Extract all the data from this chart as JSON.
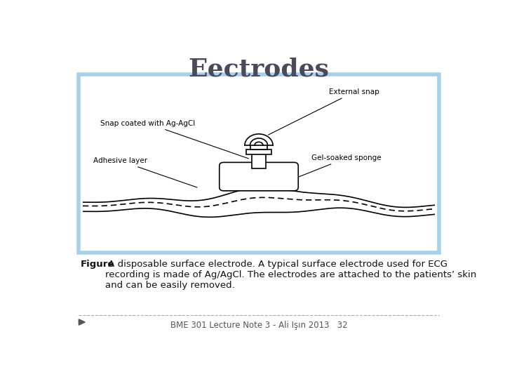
{
  "title": "Eectrodes",
  "title_color": "#4a4a5a",
  "title_fontsize": 26,
  "title_font": "serif",
  "bg_color": "#ffffff",
  "box_border_color": "#a8d0e8",
  "box_bg_color": "#ffffff",
  "diagram_labels": {
    "external_snap": "External snap",
    "snap_coated": "Snap coated with Ag-AgCl",
    "adhesive_layer": "Adhesive layer",
    "gel_soaked": "Gel-soaked sponge"
  },
  "caption_bold": "Figure",
  "caption_text": " A disposable surface electrode. A typical surface electrode used for ECG\nrecording is made of Ag/AgCl. The electrodes are attached to the patients’ skin\nand can be easily removed.",
  "footer_text": "BME 301 Lecture Note 3 - Ali Işın 2013   32",
  "footer_color": "#555555",
  "line_color": "#000000"
}
